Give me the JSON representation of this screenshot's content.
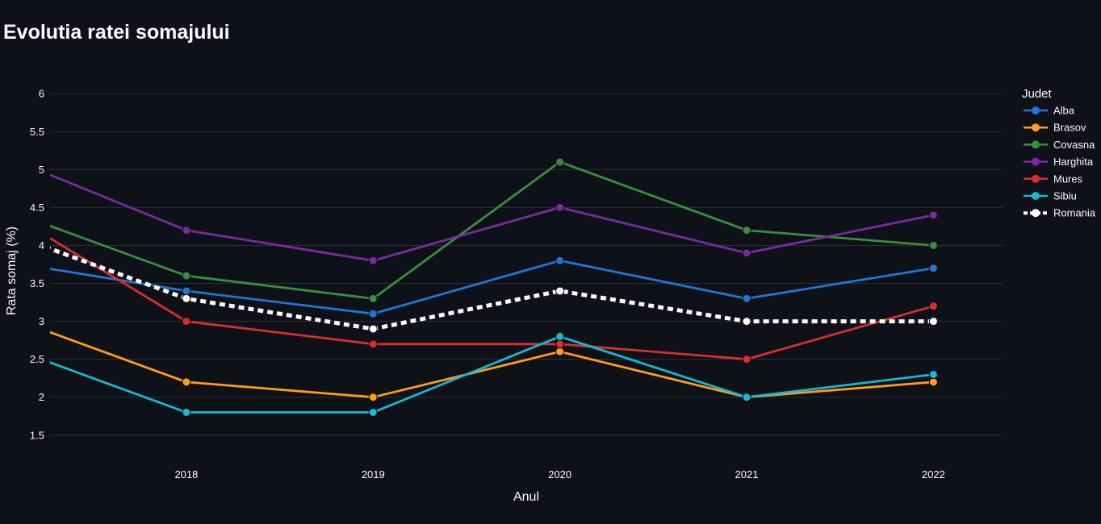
{
  "chart_data": {
    "type": "line",
    "title": "Evolutia ratei somajului",
    "xlabel": "Anul",
    "ylabel": "Rata somaj (%)",
    "x": [
      2017,
      2018,
      2019,
      2020,
      2021,
      2022
    ],
    "x_tick_labels": [
      "2018",
      "2019",
      "2020",
      "2021",
      "2022"
    ],
    "xlim": [
      2017.27,
      2022.37
    ],
    "ylim": [
      1.2,
      6.3
    ],
    "y_ticks": [
      "1.5",
      "2",
      "2.5",
      "3",
      "3.5",
      "4",
      "4.5",
      "5",
      "5.5",
      "6"
    ],
    "grid": true,
    "legend_title": "Judet",
    "legend_placement": "right",
    "series": [
      {
        "name": "Alba",
        "color": "#1f77d4",
        "dash": "solid",
        "values": [
          3.8,
          3.4,
          3.1,
          3.8,
          3.3,
          3.7
        ]
      },
      {
        "name": "Brasov",
        "color": "#ff9c1a",
        "dash": "solid",
        "values": [
          3.1,
          2.2,
          2.0,
          2.6,
          2.0,
          2.2
        ]
      },
      {
        "name": "Covasna",
        "color": "#3a8f3f",
        "dash": "solid",
        "values": [
          4.5,
          3.6,
          3.3,
          5.1,
          4.2,
          4.0
        ]
      },
      {
        "name": "Harghita",
        "color": "#7b2a9e",
        "dash": "solid",
        "values": [
          5.2,
          4.2,
          3.8,
          4.5,
          3.9,
          4.4
        ]
      },
      {
        "name": "Mures",
        "color": "#d62f2f",
        "dash": "solid",
        "values": [
          4.5,
          3.0,
          2.7,
          2.7,
          2.5,
          3.2
        ]
      },
      {
        "name": "Sibiu",
        "color": "#17b8d2",
        "dash": "solid",
        "values": [
          2.7,
          1.8,
          1.8,
          2.8,
          2.0,
          2.3
        ]
      },
      {
        "name": "Romania",
        "color": "#ffffff",
        "dash": "dot",
        "values": [
          4.2,
          3.3,
          2.9,
          3.4,
          3.0,
          3.0
        ]
      }
    ]
  }
}
